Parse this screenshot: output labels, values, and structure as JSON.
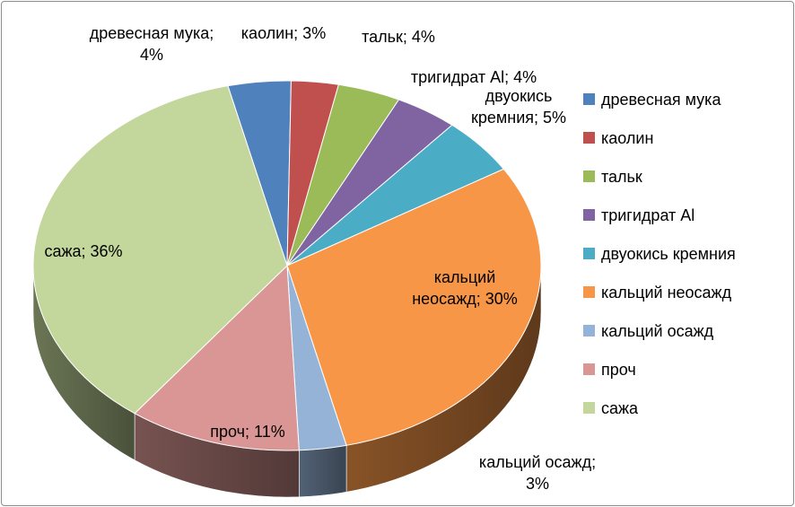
{
  "chart_data": {
    "type": "pie",
    "style": "3d",
    "legend_position": "right",
    "categories": [
      "древесная мука",
      "каолин",
      "тальк",
      "тригидрат Al",
      "двуокись кремния",
      "кальций неосажд",
      "кальций осажд",
      "проч",
      "сажа"
    ],
    "values": [
      4,
      3,
      4,
      4,
      5,
      30,
      3,
      11,
      36
    ],
    "colors": [
      "#4F81BD",
      "#C0504D",
      "#9BBB59",
      "#8064A2",
      "#4BACC6",
      "#F79646",
      "#95B3D7",
      "#D99694",
      "#C3D69B"
    ],
    "data_labels": [
      [
        "древесная мука;",
        "4%"
      ],
      [
        "каолин; 3%"
      ],
      [
        "тальк; 4%"
      ],
      [
        "тригидрат Al; 4%"
      ],
      [
        "двуокись",
        "кремния; 5%"
      ],
      [
        "кальций",
        "неосажд; 30%"
      ],
      [
        "кальций осажд;",
        "3%"
      ],
      [
        "проч; 11%"
      ],
      [
        "сажа; 36%"
      ]
    ]
  }
}
